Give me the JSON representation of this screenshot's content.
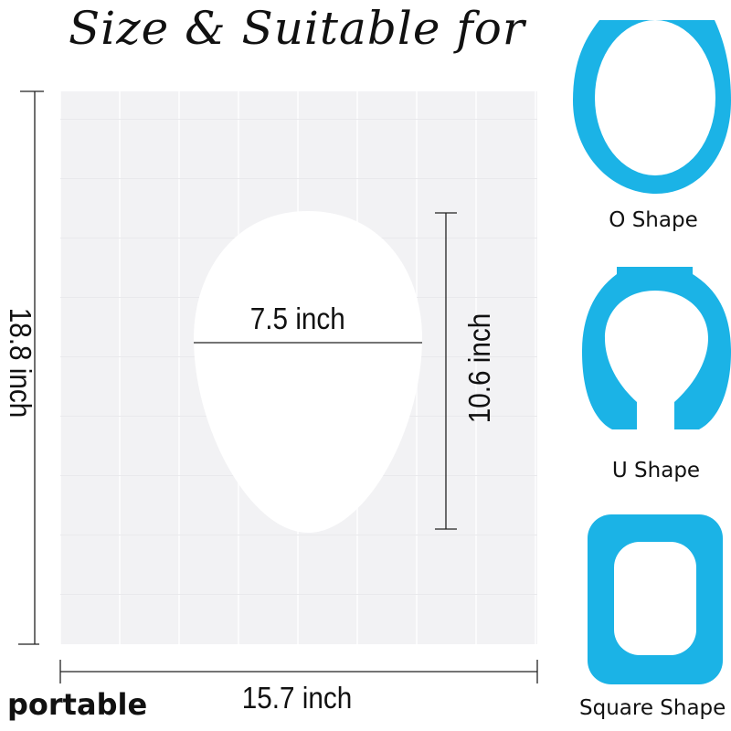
{
  "title": "Size & Suitable for",
  "dimensions": {
    "height": "18.8 inch",
    "width": "15.7 inch",
    "hole_width": "7.5 inch",
    "hole_height": "10.6 inch"
  },
  "shapes": [
    {
      "label": "O Shape",
      "icon": "o-shape-seat-icon"
    },
    {
      "label": "U Shape",
      "icon": "u-shape-seat-icon"
    },
    {
      "label": "Square Shape",
      "icon": "square-shape-seat-icon"
    }
  ],
  "footer_text": "portable",
  "colors": {
    "seat_blue": "#1bb3e6",
    "sheet": "#f3f3f5"
  }
}
